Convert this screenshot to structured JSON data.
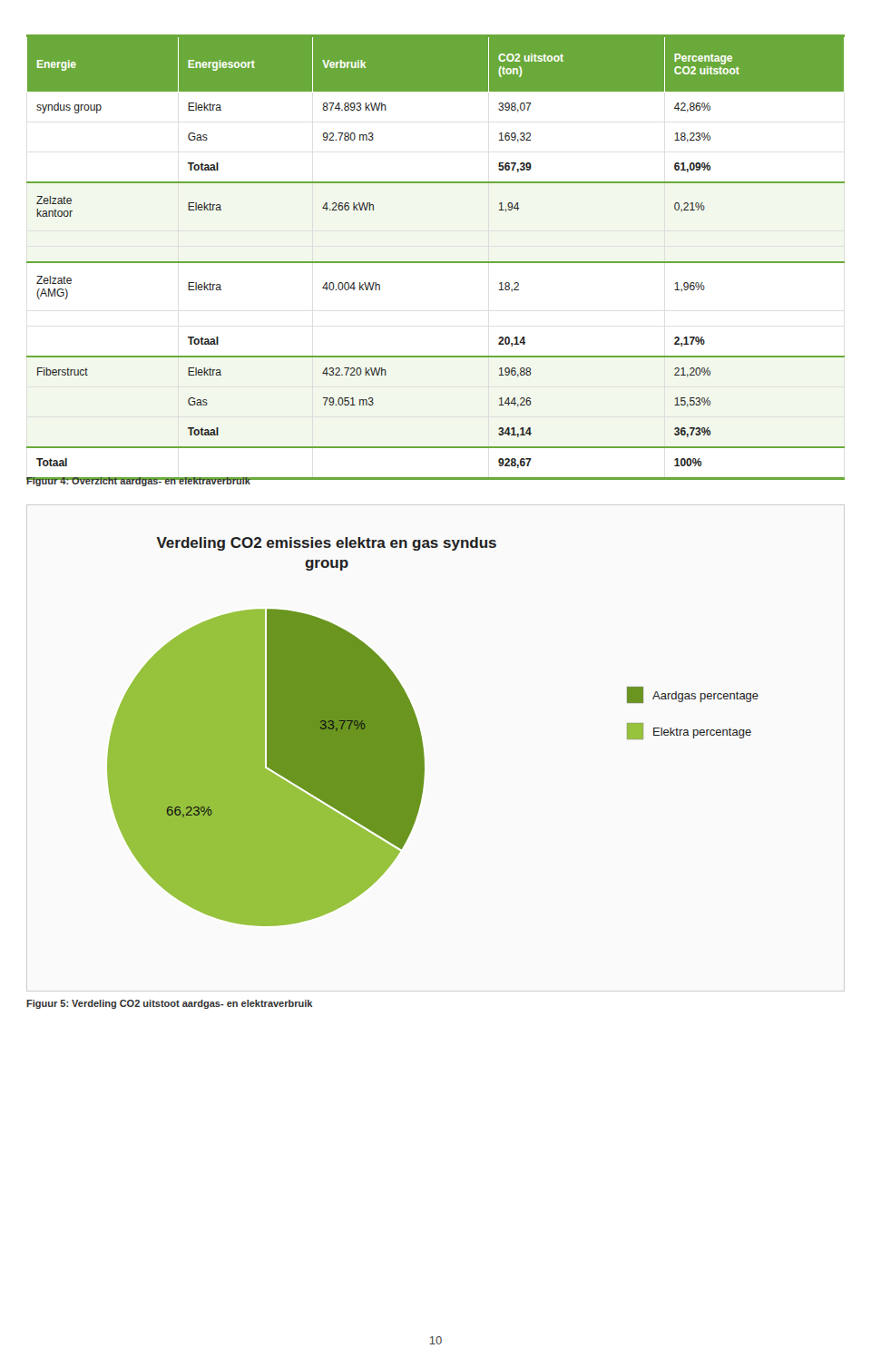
{
  "chart_data": [
    {
      "type": "table",
      "columns": [
        "Energie",
        "Energiesoort",
        "Verbruik",
        "CO2 uitstoot\n(ton)",
        "Percentage\nCO2 uitstoot"
      ],
      "rows": [
        {
          "cells": [
            "syndus group",
            "Elektra",
            "874.893 kWh",
            "398,07",
            "42,86%"
          ],
          "total": false
        },
        {
          "cells": [
            null,
            "Gas",
            "92.780 m3",
            "169,32",
            "18,23%"
          ],
          "total": false
        },
        {
          "cells": [
            null,
            "Totaal",
            null,
            "567,39",
            "61,09%"
          ],
          "total": true
        },
        {
          "cells": [
            "Zelzate\nkantoor",
            "Elektra",
            "4.266 kWh",
            "1,94",
            "0,21%"
          ],
          "total": false
        },
        {
          "cells": [
            null,
            null,
            null,
            null,
            null
          ],
          "total": false
        },
        {
          "cells": [
            null,
            null,
            null,
            null,
            null
          ],
          "total": false
        },
        {
          "cells": [
            "Zelzate\n(AMG)",
            "Elektra",
            "40.004 kWh",
            "18,2",
            "1,96%"
          ],
          "total": false
        },
        {
          "cells": [
            null,
            null,
            null,
            null,
            null
          ],
          "total": false
        },
        {
          "cells": [
            null,
            "Totaal",
            null,
            "20,14",
            "2,17%"
          ],
          "total": true
        },
        {
          "cells": [
            "Fiberstruct",
            "Elektra",
            "432.720 kWh",
            "196,88",
            "21,20%"
          ],
          "total": false
        },
        {
          "cells": [
            null,
            "Gas",
            "79.051 m3",
            "144,26",
            "15,53%"
          ],
          "total": false
        },
        {
          "cells": [
            null,
            "Totaal",
            null,
            "341,14",
            "36,73%"
          ],
          "total": true
        },
        {
          "cells": [
            "Totaal",
            null,
            null,
            "928,67",
            "100%"
          ],
          "total": true
        }
      ],
      "caption": "Figuur 4: Overzicht aardgas- en elektraverbruik"
    },
    {
      "type": "pie",
      "title": "Verdeling CO2 emissies elektra en gas syndus\ngroup",
      "categories": [
        "Aardgas percentage",
        "Elektra percentage"
      ],
      "values": [
        33.77,
        66.23
      ],
      "value_labels": [
        "33,77%",
        "66,23%"
      ],
      "colors": [
        "#6a9620",
        "#96c23c"
      ],
      "data_labels": true,
      "legend": "right",
      "caption": "Figuur 5: Verdeling CO2 uitstoot aardgas- en elektraverbruik"
    }
  ],
  "page_number": "10"
}
